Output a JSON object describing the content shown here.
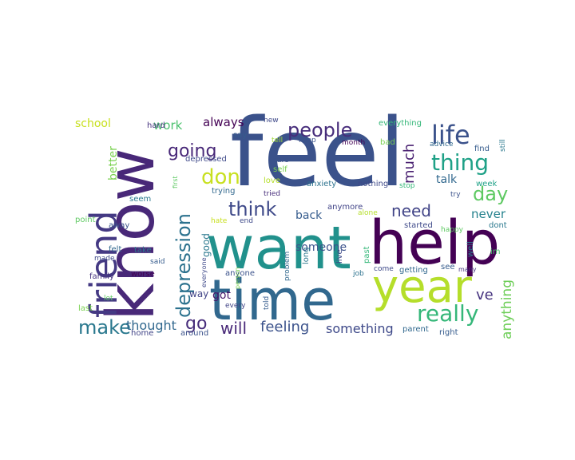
{
  "words": [
    {
      "text": "feel",
      "color": "#3b528b"
    },
    {
      "text": "know",
      "color": "#482878"
    },
    {
      "text": "want",
      "color": "#21918c"
    },
    {
      "text": "help",
      "color": "#440154"
    },
    {
      "text": "time",
      "color": "#31688e"
    },
    {
      "text": "year",
      "color": "#b5de2b"
    },
    {
      "text": "friend",
      "color": "#443983"
    },
    {
      "text": "depression",
      "color": "#2c728e"
    },
    {
      "text": "really",
      "color": "#35b779"
    },
    {
      "text": "people",
      "color": "#472d7b"
    },
    {
      "text": "life",
      "color": "#3b528b"
    },
    {
      "text": "thing",
      "color": "#1fa187"
    },
    {
      "text": "going",
      "color": "#482878"
    },
    {
      "text": "don",
      "color": "#c8e020"
    },
    {
      "text": "think",
      "color": "#3e4989"
    },
    {
      "text": "need",
      "color": "#414487"
    },
    {
      "text": "day",
      "color": "#5ec962"
    },
    {
      "text": "much",
      "color": "#481f70"
    },
    {
      "text": "make",
      "color": "#2a788e"
    },
    {
      "text": "go",
      "color": "#472d7b"
    },
    {
      "text": "feeling",
      "color": "#3b528b"
    },
    {
      "text": "will",
      "color": "#482878"
    },
    {
      "text": "thought",
      "color": "#31688e"
    },
    {
      "text": "something",
      "color": "#3e4989"
    },
    {
      "text": "anything",
      "color": "#6ece58"
    },
    {
      "text": "never",
      "color": "#26828e"
    },
    {
      "text": "ve",
      "color": "#46337f"
    },
    {
      "text": "work",
      "color": "#4ac16d"
    },
    {
      "text": "school",
      "color": "#c8e020"
    },
    {
      "text": "always",
      "color": "#440154"
    },
    {
      "text": "better",
      "color": "#7ad151"
    },
    {
      "text": "back",
      "color": "#365c8d"
    },
    {
      "text": "someone",
      "color": "#3b528b"
    },
    {
      "text": "talk",
      "color": "#31688e"
    },
    {
      "text": "way",
      "color": "#414487"
    },
    {
      "text": "got",
      "color": "#481769"
    },
    {
      "text": "good",
      "color": "#2a788e"
    },
    {
      "text": "hard",
      "color": "#46337f"
    },
    {
      "text": "everything",
      "color": "#35b779"
    },
    {
      "text": "depressed",
      "color": "#3e4989"
    },
    {
      "text": "say",
      "color": "#365c8d"
    },
    {
      "text": "tell",
      "color": "#a0da39"
    },
    {
      "text": "care",
      "color": "#3b528b"
    },
    {
      "text": "self",
      "color": "#7ad151"
    },
    {
      "text": "love",
      "color": "#b5de2b"
    },
    {
      "text": "trying",
      "color": "#31688e"
    },
    {
      "text": "tried",
      "color": "#472d7b"
    },
    {
      "text": "anxiety",
      "color": "#2c728e"
    },
    {
      "text": "nothing",
      "color": "#3e4989"
    },
    {
      "text": "anymore",
      "color": "#414487"
    },
    {
      "text": "seem",
      "color": "#2a788e"
    },
    {
      "text": "away",
      "color": "#3b528b"
    },
    {
      "text": "point",
      "color": "#5ec962"
    },
    {
      "text": "felt",
      "color": "#31688e"
    },
    {
      "text": "take",
      "color": "#2a788e"
    },
    {
      "text": "made",
      "color": "#3e4989"
    },
    {
      "text": "said",
      "color": "#365c8d"
    },
    {
      "text": "family",
      "color": "#46337f"
    },
    {
      "text": "worse",
      "color": "#440154"
    },
    {
      "text": "last",
      "color": "#7ad151"
    },
    {
      "text": "lot",
      "color": "#5ec962"
    },
    {
      "text": "home",
      "color": "#414487"
    },
    {
      "text": "around",
      "color": "#3b528b"
    },
    {
      "text": "end",
      "color": "#3e4989"
    },
    {
      "text": "hate",
      "color": "#c8e020"
    },
    {
      "text": "every",
      "color": "#414487"
    },
    {
      "text": "anyone",
      "color": "#3b528b"
    },
    {
      "text": "told",
      "color": "#365c8d"
    },
    {
      "text": "problem",
      "color": "#31688e"
    },
    {
      "text": "long",
      "color": "#2a788e"
    },
    {
      "text": "live",
      "color": "#3e4989"
    },
    {
      "text": "past",
      "color": "#35b779"
    },
    {
      "text": "alone",
      "color": "#b5de2b"
    },
    {
      "text": "keep",
      "color": "#3b528b"
    },
    {
      "text": "month",
      "color": "#440154"
    },
    {
      "text": "bad",
      "color": "#7ad151"
    },
    {
      "text": "new",
      "color": "#3e4989"
    },
    {
      "text": "advice",
      "color": "#31688e"
    },
    {
      "text": "find",
      "color": "#365c8d"
    },
    {
      "text": "still",
      "color": "#2a788e"
    },
    {
      "text": "week",
      "color": "#1fa187"
    },
    {
      "text": "try",
      "color": "#3b528b"
    },
    {
      "text": "stop",
      "color": "#35b779"
    },
    {
      "text": "happy",
      "color": "#5ec962"
    },
    {
      "text": "dont",
      "color": "#2a788e"
    },
    {
      "text": "started",
      "color": "#3e4989"
    },
    {
      "text": "getting",
      "color": "#31688e"
    },
    {
      "text": "see",
      "color": "#365c8d"
    },
    {
      "text": "many",
      "color": "#46337f"
    },
    {
      "text": "im",
      "color": "#4ac16d"
    },
    {
      "text": "well",
      "color": "#2a788e"
    },
    {
      "text": "come",
      "color": "#3e4989"
    },
    {
      "text": "job",
      "color": "#2c728e"
    },
    {
      "text": "right",
      "color": "#365c8d"
    },
    {
      "text": "parent",
      "color": "#31688e"
    },
    {
      "text": "everyone",
      "color": "#3e4989"
    },
    {
      "text": "first",
      "color": "#5ec962"
    },
    {
      "text": "person",
      "color": "#7ad151"
    }
  ]
}
